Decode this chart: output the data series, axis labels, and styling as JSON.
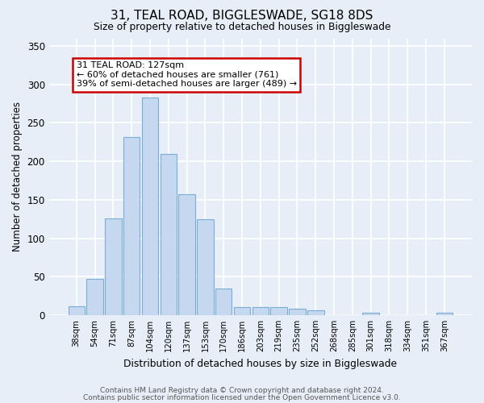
{
  "title1": "31, TEAL ROAD, BIGGLESWADE, SG18 8DS",
  "title2": "Size of property relative to detached houses in Biggleswade",
  "xlabel": "Distribution of detached houses by size in Biggleswade",
  "ylabel": "Number of detached properties",
  "categories": [
    "38sqm",
    "54sqm",
    "71sqm",
    "87sqm",
    "104sqm",
    "120sqm",
    "137sqm",
    "153sqm",
    "170sqm",
    "186sqm",
    "203sqm",
    "219sqm",
    "235sqm",
    "252sqm",
    "268sqm",
    "285sqm",
    "301sqm",
    "318sqm",
    "334sqm",
    "351sqm",
    "367sqm"
  ],
  "values": [
    11,
    47,
    126,
    232,
    283,
    210,
    157,
    125,
    35,
    10,
    10,
    10,
    8,
    6,
    0,
    0,
    3,
    0,
    0,
    0,
    3
  ],
  "bar_color": "#c5d8f0",
  "bar_edgecolor": "#7aadd4",
  "annotation_text": "31 TEAL ROAD: 127sqm\n← 60% of detached houses are smaller (761)\n39% of semi-detached houses are larger (489) →",
  "annotation_box_color": "#ffffff",
  "annotation_box_edgecolor": "#cc0000",
  "background_color": "#e8eef8",
  "plot_bg_color": "#e8eef8",
  "grid_color": "#ffffff",
  "ylim": [
    0,
    360
  ],
  "yticks": [
    0,
    50,
    100,
    150,
    200,
    250,
    300,
    350
  ],
  "footer1": "Contains HM Land Registry data © Crown copyright and database right 2024.",
  "footer2": "Contains public sector information licensed under the Open Government Licence v3.0."
}
